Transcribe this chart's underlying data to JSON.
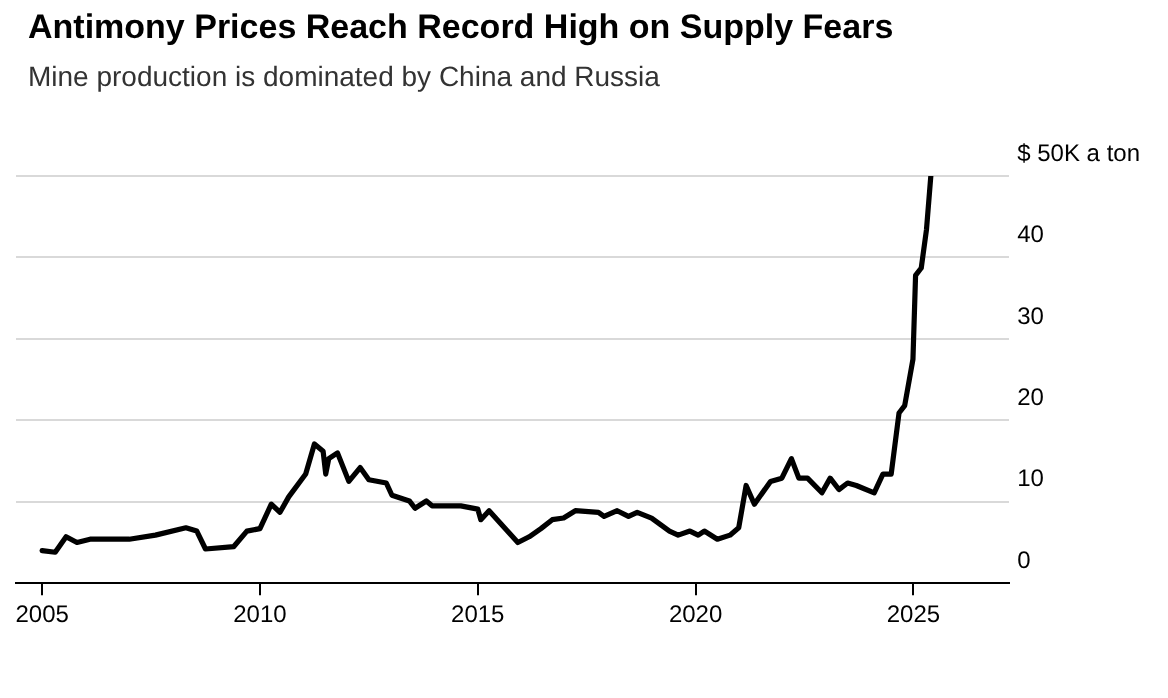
{
  "chart_data": {
    "type": "line",
    "title": "Antimony Prices Reach Record High on Supply Fears",
    "subtitle": "Mine production is dominated by China and Russia",
    "x": [
      2005.0,
      2005.3,
      2005.55,
      2005.8,
      2006.1,
      2007.0,
      2007.6,
      2008.3,
      2008.55,
      2008.75,
      2009.4,
      2009.7,
      2010.0,
      2010.26,
      2010.46,
      2010.66,
      2011.05,
      2011.25,
      2011.45,
      2011.51,
      2011.58,
      2011.78,
      2012.04,
      2012.3,
      2012.5,
      2012.9,
      2013.03,
      2013.43,
      2013.56,
      2013.82,
      2013.95,
      2014.61,
      2015.0,
      2015.07,
      2015.26,
      2015.53,
      2015.92,
      2016.18,
      2016.45,
      2016.71,
      2016.97,
      2017.24,
      2017.77,
      2017.9,
      2018.2,
      2018.46,
      2018.66,
      2018.99,
      2019.4,
      2019.6,
      2019.87,
      2020.06,
      2020.2,
      2020.5,
      2020.79,
      2020.99,
      2021.16,
      2021.35,
      2021.72,
      2021.98,
      2022.2,
      2022.37,
      2022.57,
      2022.9,
      2023.09,
      2023.29,
      2023.49,
      2023.69,
      2024.1,
      2024.3,
      2024.49,
      2024.67,
      2024.8,
      2024.99,
      2025.05,
      2025.18,
      2025.3,
      2025.4
    ],
    "series": [
      {
        "color": "#000000",
        "values": [
          4.0,
          3.8,
          5.7,
          5.0,
          5.4,
          5.4,
          5.9,
          6.8,
          6.4,
          4.2,
          4.5,
          6.4,
          6.7,
          9.7,
          8.7,
          10.6,
          13.4,
          17.1,
          16.2,
          13.4,
          15.3,
          16.0,
          12.5,
          14.2,
          12.7,
          12.3,
          10.8,
          10.1,
          9.2,
          10.1,
          9.5,
          9.5,
          9.1,
          7.8,
          8.9,
          7.3,
          5.0,
          5.7,
          6.7,
          7.8,
          8.0,
          8.9,
          8.7,
          8.2,
          8.9,
          8.2,
          8.7,
          8.0,
          6.4,
          5.9,
          6.4,
          5.9,
          6.4,
          5.4,
          5.9,
          6.8,
          12.0,
          9.7,
          12.5,
          12.9,
          15.3,
          12.9,
          12.9,
          11.1,
          12.9,
          11.5,
          12.3,
          12.0,
          11.1,
          13.4,
          13.4,
          20.9,
          21.8,
          27.5,
          37.8,
          38.7,
          43.4,
          50
        ]
      }
    ],
    "xlim": [
      2004.4,
      2027.2
    ],
    "xticks": [
      2005,
      2010,
      2015,
      2020,
      2025
    ],
    "ylim": [
      0,
      50
    ],
    "yticks": [
      0,
      10,
      20,
      30,
      40,
      {
        "value": 50,
        "label": "$ 50K a ton"
      }
    ],
    "grid": "y",
    "legend": false,
    "marker": "none",
    "line_style": "solid"
  }
}
